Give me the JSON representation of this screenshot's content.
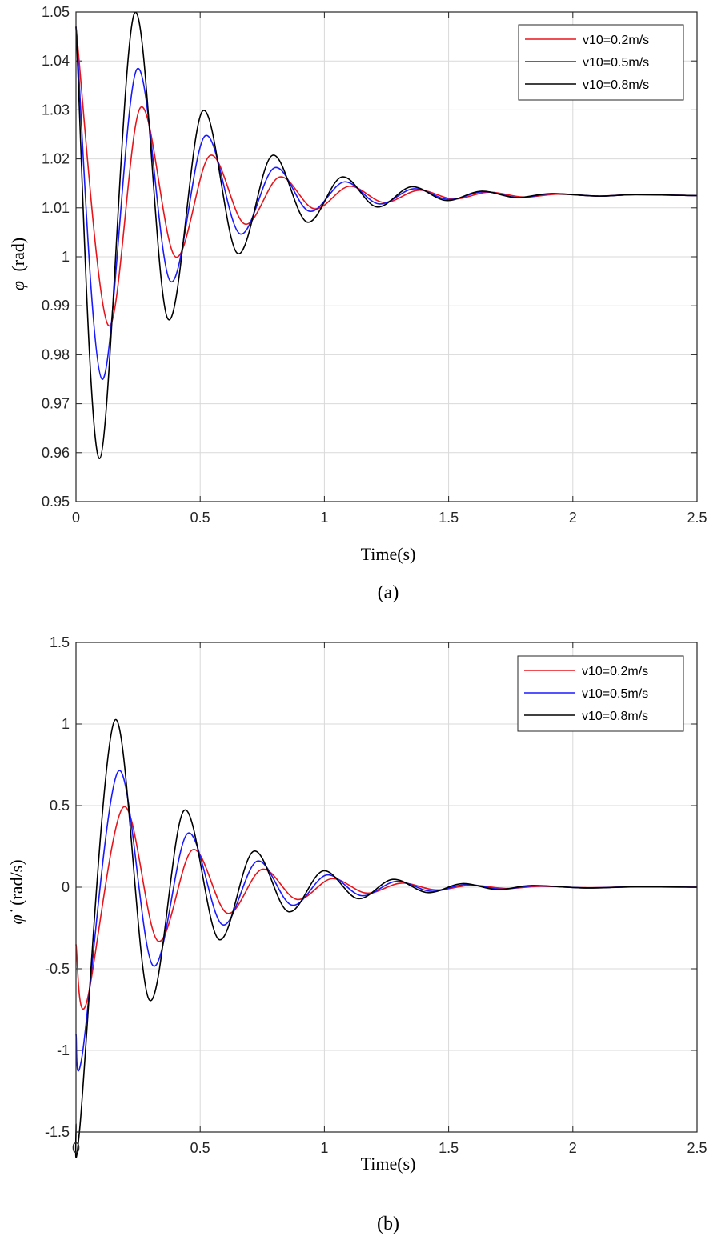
{
  "colors": {
    "series": [
      "#e8141b",
      "#1a1aff",
      "#000000"
    ]
  },
  "chart_data": [
    {
      "type": "line",
      "panel_label": "(a)",
      "xlabel": "Time(s)",
      "ylabel_symbol": "φ",
      "ylabel_unit": "(rad)",
      "xlim": [
        0,
        2.5
      ],
      "ylim": [
        0.95,
        1.05
      ],
      "xticks": [
        0,
        0.5,
        1,
        1.5,
        2,
        2.5
      ],
      "xtick_labels": [
        "0",
        "0.5",
        "1",
        "1.5",
        "2",
        "2.5"
      ],
      "yticks": [
        0.95,
        0.96,
        0.97,
        0.98,
        0.99,
        1.0,
        1.01,
        1.02,
        1.03,
        1.04,
        1.05
      ],
      "ytick_labels": [
        "0.95",
        "0.96",
        "0.97",
        "0.98",
        "0.99",
        "1",
        "1.01",
        "1.02",
        "1.03",
        "1.04",
        "1.05"
      ],
      "grid": true,
      "legend": "top-right",
      "series": [
        {
          "name": "v10=0.2m/s",
          "color": "#e8141b",
          "x": [
            0,
            0.13,
            0.26,
            0.4,
            0.54,
            0.68,
            0.82,
            0.96,
            1.1,
            1.24,
            1.38,
            1.52,
            1.66,
            1.8,
            1.94,
            2.1,
            2.25,
            2.5
          ],
          "y": [
            1.047,
            0.986,
            1.0305,
            1.0,
            1.0207,
            1.0067,
            1.0163,
            1.0098,
            1.0144,
            1.0111,
            1.0136,
            1.0118,
            1.0132,
            1.0122,
            1.0128,
            1.0124,
            1.0127,
            1.0125
          ]
        },
        {
          "name": "v10=0.5m/s",
          "color": "#1a1aff",
          "x": [
            0,
            0.105,
            0.245,
            0.38,
            0.52,
            0.66,
            0.8,
            0.94,
            1.08,
            1.22,
            1.36,
            1.5,
            1.64,
            1.78,
            1.92,
            2.1,
            2.25,
            2.5
          ],
          "y": [
            1.047,
            0.975,
            1.0383,
            0.995,
            1.0247,
            1.0047,
            1.0182,
            1.0093,
            1.0153,
            1.0108,
            1.0139,
            1.0117,
            1.0133,
            1.0121,
            1.0129,
            1.0124,
            1.0127,
            1.0125
          ]
        },
        {
          "name": "v10=0.8m/s",
          "color": "#000000",
          "x": [
            0,
            0.095,
            0.235,
            0.37,
            0.51,
            0.65,
            0.79,
            0.93,
            1.07,
            1.21,
            1.35,
            1.49,
            1.63,
            1.77,
            1.91,
            2.1,
            2.25,
            2.5
          ],
          "y": [
            1.047,
            0.9588,
            1.0497,
            0.9873,
            1.0298,
            1.0007,
            1.0207,
            1.0071,
            1.0163,
            1.0102,
            1.0143,
            1.0115,
            1.0134,
            1.0121,
            1.0129,
            1.0124,
            1.0127,
            1.0125
          ]
        }
      ]
    },
    {
      "type": "line",
      "panel_label": "(b)",
      "xlabel": "Time(s)",
      "ylabel_symbol": "φ̇",
      "ylabel_unit": "(rad/s)",
      "xlim": [
        0,
        2.5
      ],
      "ylim": [
        -1.5,
        1.5
      ],
      "xticks": [
        0,
        0.5,
        1,
        1.5,
        2,
        2.5
      ],
      "xtick_labels": [
        "0",
        "0.5",
        "1",
        "1.5",
        "2",
        "2.5"
      ],
      "yticks": [
        -1.5,
        -1,
        -0.5,
        0,
        0.5,
        1,
        1.5
      ],
      "ytick_labels": [
        "-1.5",
        "-1",
        "-0.5",
        "0",
        "0.5",
        "1",
        "1.5"
      ],
      "grid": true,
      "legend": "top-right",
      "series": [
        {
          "name": "v10=0.2m/s",
          "color": "#e8141b",
          "x": [
            0,
            0.04,
            0.19,
            0.33,
            0.47,
            0.61,
            0.75,
            0.89,
            1.03,
            1.17,
            1.31,
            1.45,
            1.59,
            1.73,
            1.87,
            2.05,
            2.25,
            2.5
          ],
          "y": [
            -0.35,
            -0.72,
            0.49,
            -0.33,
            0.23,
            -0.16,
            0.11,
            -0.075,
            0.052,
            -0.036,
            0.025,
            -0.017,
            0.012,
            -0.008,
            0.005,
            -0.003,
            0.002,
            0.0
          ]
        },
        {
          "name": "v10=0.5m/s",
          "color": "#1a1aff",
          "x": [
            0,
            0.025,
            0.17,
            0.31,
            0.45,
            0.59,
            0.73,
            0.87,
            1.01,
            1.15,
            1.29,
            1.43,
            1.57,
            1.71,
            1.85,
            2.05,
            2.25,
            2.5
          ],
          "y": [
            -0.9,
            -1.03,
            0.71,
            -0.48,
            0.33,
            -0.23,
            0.16,
            -0.11,
            0.075,
            -0.052,
            0.036,
            -0.025,
            0.017,
            -0.012,
            0.008,
            -0.004,
            0.002,
            0.0
          ]
        },
        {
          "name": "v10=0.8m/s",
          "color": "#000000",
          "x": [
            0,
            0.015,
            0.155,
            0.295,
            0.435,
            0.575,
            0.715,
            0.855,
            0.995,
            1.135,
            1.275,
            1.415,
            1.555,
            1.695,
            1.835,
            2.05,
            2.25,
            2.5
          ],
          "y": [
            -1.45,
            -1.48,
            1.02,
            -0.69,
            0.47,
            -0.32,
            0.22,
            -0.15,
            0.1,
            -0.07,
            0.048,
            -0.033,
            0.022,
            -0.015,
            0.01,
            -0.005,
            0.002,
            0.0
          ]
        }
      ]
    }
  ]
}
